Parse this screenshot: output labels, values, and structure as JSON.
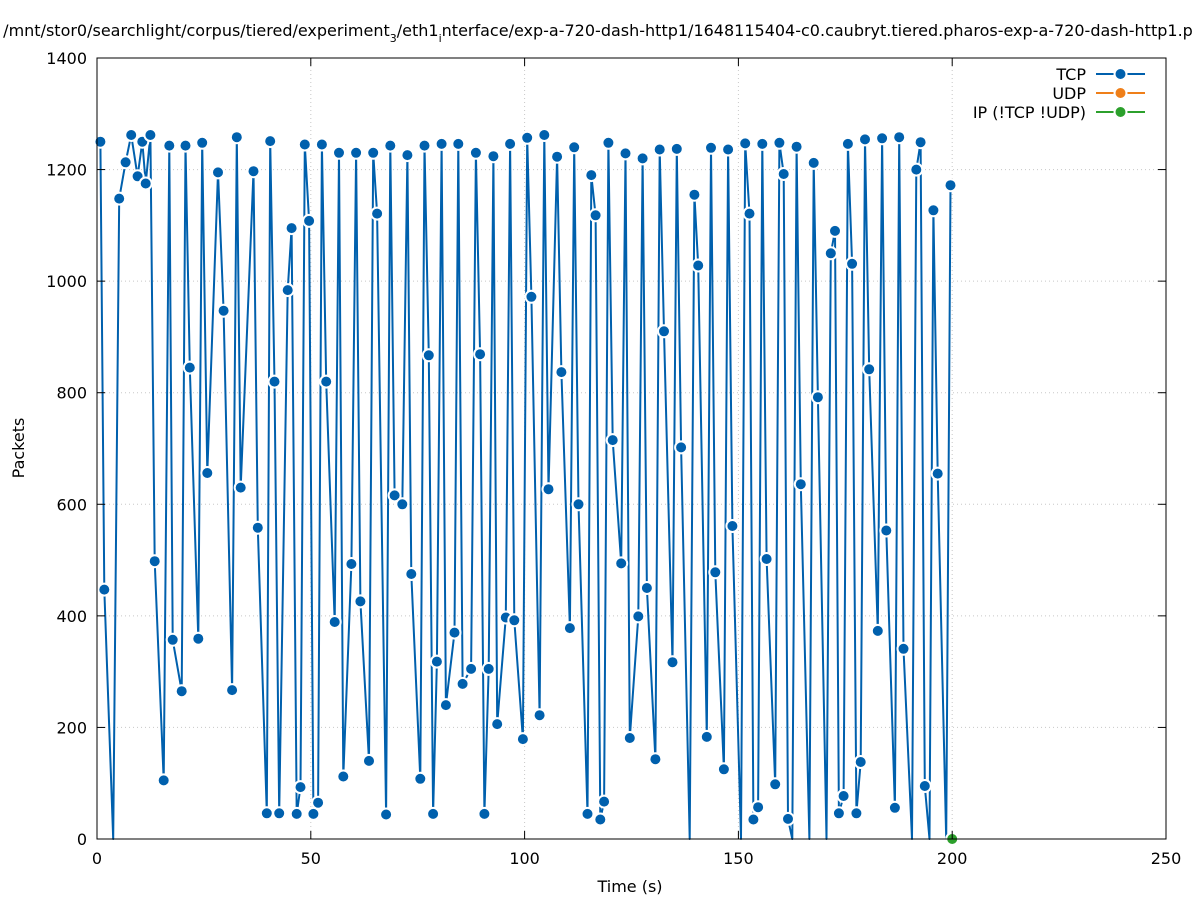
{
  "chart_data": {
    "type": "line",
    "title": "/mnt/stor0/searchlight/corpus/tiered/experiment_3/eth1_interface/exp-a-720-dash-http1/1648115404-c0.caubryt.tiered.pharos-exp-a-720-dash-http1.p",
    "title_parts": {
      "a": "/mnt/stor0/searchlight/corpus/tiered/experiment",
      "sub1": "3",
      "b": "/eth1",
      "sub2": "i",
      "c": "nterface/exp-a-720-dash-http1/1648115404-c0.caubryt.tiered.pharos-exp-a-720-dash-http1.p"
    },
    "xlabel": "Time (s)",
    "ylabel": "Packets",
    "xlim": [
      0,
      250
    ],
    "ylim": [
      0,
      1400
    ],
    "xticks": [
      "0",
      "50",
      "100",
      "150",
      "200",
      "250"
    ],
    "yticks": [
      "0",
      "200",
      "400",
      "600",
      "800",
      "1000",
      "1200",
      "1400"
    ],
    "grid": true,
    "legend_position": "top-right",
    "series": [
      {
        "name": "TCP",
        "color": "#0060ad",
        "points": [
          [
            0.8,
            1250
          ],
          [
            1.7,
            447
          ],
          [
            3.8,
            0
          ],
          [
            5.2,
            1148
          ],
          [
            6.7,
            1213
          ],
          [
            8.0,
            1262
          ],
          [
            9.5,
            1188
          ],
          [
            10.6,
            1250
          ],
          [
            11.4,
            1175
          ],
          [
            12.5,
            1262
          ],
          [
            13.5,
            498
          ],
          [
            15.6,
            105
          ],
          [
            16.9,
            1243
          ],
          [
            17.7,
            357
          ],
          [
            19.8,
            265
          ],
          [
            20.7,
            1243
          ],
          [
            21.7,
            845
          ],
          [
            23.7,
            359
          ],
          [
            24.6,
            1248
          ],
          [
            25.8,
            656
          ],
          [
            28.3,
            1195
          ],
          [
            29.6,
            947
          ],
          [
            31.6,
            267
          ],
          [
            32.7,
            1258
          ],
          [
            33.6,
            630
          ],
          [
            36.6,
            1197
          ],
          [
            37.6,
            558
          ],
          [
            39.7,
            46
          ],
          [
            40.5,
            1251
          ],
          [
            41.5,
            820
          ],
          [
            42.6,
            46
          ],
          [
            44.6,
            984
          ],
          [
            45.5,
            1095
          ],
          [
            46.7,
            45
          ],
          [
            47.6,
            93
          ],
          [
            48.6,
            1245
          ],
          [
            49.6,
            1108
          ],
          [
            50.6,
            45
          ],
          [
            51.7,
            65
          ],
          [
            52.6,
            1245
          ],
          [
            53.6,
            820
          ],
          [
            55.6,
            389
          ],
          [
            56.6,
            1230
          ],
          [
            57.6,
            112
          ],
          [
            59.5,
            493
          ],
          [
            60.6,
            1230
          ],
          [
            61.6,
            426
          ],
          [
            63.6,
            140
          ],
          [
            64.6,
            1230
          ],
          [
            65.5,
            1121
          ],
          [
            67.6,
            44
          ],
          [
            68.6,
            1243
          ],
          [
            69.6,
            616
          ],
          [
            71.4,
            600
          ],
          [
            72.6,
            1226
          ],
          [
            73.5,
            475
          ],
          [
            75.6,
            108
          ],
          [
            76.6,
            1243
          ],
          [
            77.6,
            867
          ],
          [
            78.6,
            45
          ],
          [
            79.5,
            318
          ],
          [
            80.6,
            1246
          ],
          [
            81.6,
            240
          ],
          [
            83.6,
            370
          ],
          [
            84.5,
            1246
          ],
          [
            85.5,
            278
          ],
          [
            87.5,
            305
          ],
          [
            88.6,
            1230
          ],
          [
            89.6,
            869
          ],
          [
            90.6,
            45
          ],
          [
            91.6,
            305
          ],
          [
            92.7,
            1224
          ],
          [
            93.6,
            206
          ],
          [
            95.6,
            397
          ],
          [
            96.6,
            1246
          ],
          [
            97.6,
            392
          ],
          [
            99.6,
            179
          ],
          [
            100.6,
            1257
          ],
          [
            101.6,
            972
          ],
          [
            103.5,
            222
          ],
          [
            104.6,
            1262
          ],
          [
            105.6,
            627
          ],
          [
            107.6,
            1223
          ],
          [
            108.6,
            837
          ],
          [
            110.6,
            378
          ],
          [
            111.6,
            1240
          ],
          [
            112.6,
            600
          ],
          [
            114.7,
            45
          ],
          [
            115.6,
            1190
          ],
          [
            116.6,
            1118
          ],
          [
            117.7,
            35
          ],
          [
            118.6,
            67
          ],
          [
            119.6,
            1248
          ],
          [
            120.6,
            715
          ],
          [
            122.6,
            494
          ],
          [
            123.6,
            1229
          ],
          [
            124.6,
            181
          ],
          [
            126.6,
            399
          ],
          [
            127.6,
            1220
          ],
          [
            128.6,
            450
          ],
          [
            130.6,
            143
          ],
          [
            131.6,
            1236
          ],
          [
            132.6,
            910
          ],
          [
            134.6,
            317
          ],
          [
            135.6,
            1237
          ],
          [
            136.6,
            702
          ],
          [
            138.6,
            0
          ],
          [
            139.7,
            1155
          ],
          [
            140.6,
            1028
          ],
          [
            142.6,
            183
          ],
          [
            143.6,
            1239
          ],
          [
            144.6,
            478
          ],
          [
            146.6,
            125
          ],
          [
            147.6,
            1236
          ],
          [
            148.6,
            561
          ],
          [
            150.6,
            0
          ],
          [
            151.6,
            1247
          ],
          [
            152.6,
            1121
          ],
          [
            153.5,
            35
          ],
          [
            154.6,
            57
          ],
          [
            155.6,
            1246
          ],
          [
            156.6,
            502
          ],
          [
            158.6,
            98
          ],
          [
            159.6,
            1248
          ],
          [
            160.6,
            1192
          ],
          [
            161.6,
            36
          ],
          [
            162.6,
            0
          ],
          [
            163.6,
            1241
          ],
          [
            164.6,
            636
          ],
          [
            166.6,
            0
          ],
          [
            167.6,
            1212
          ],
          [
            168.6,
            792
          ],
          [
            170.6,
            0
          ],
          [
            171.6,
            1050
          ],
          [
            172.6,
            1090
          ],
          [
            173.5,
            46
          ],
          [
            174.6,
            77
          ],
          [
            175.6,
            1246
          ],
          [
            176.6,
            1031
          ],
          [
            177.6,
            46
          ],
          [
            178.6,
            138
          ],
          [
            179.6,
            1254
          ],
          [
            180.6,
            842
          ],
          [
            182.6,
            373
          ],
          [
            183.6,
            1256
          ],
          [
            184.6,
            553
          ],
          [
            186.6,
            56
          ],
          [
            187.6,
            1258
          ],
          [
            188.6,
            341
          ],
          [
            190.6,
            0
          ],
          [
            191.6,
            1200
          ],
          [
            192.6,
            1249
          ],
          [
            193.6,
            95
          ],
          [
            194.7,
            0
          ],
          [
            195.6,
            1127
          ],
          [
            196.6,
            655
          ],
          [
            198.6,
            0
          ],
          [
            199.6,
            1172
          ]
        ]
      },
      {
        "name": "UDP",
        "color": "#ef7f19",
        "points": []
      },
      {
        "name": "IP (!TCP  !UDP)",
        "color": "#2ca02c",
        "points": [
          [
            200.0,
            0
          ]
        ]
      }
    ]
  }
}
